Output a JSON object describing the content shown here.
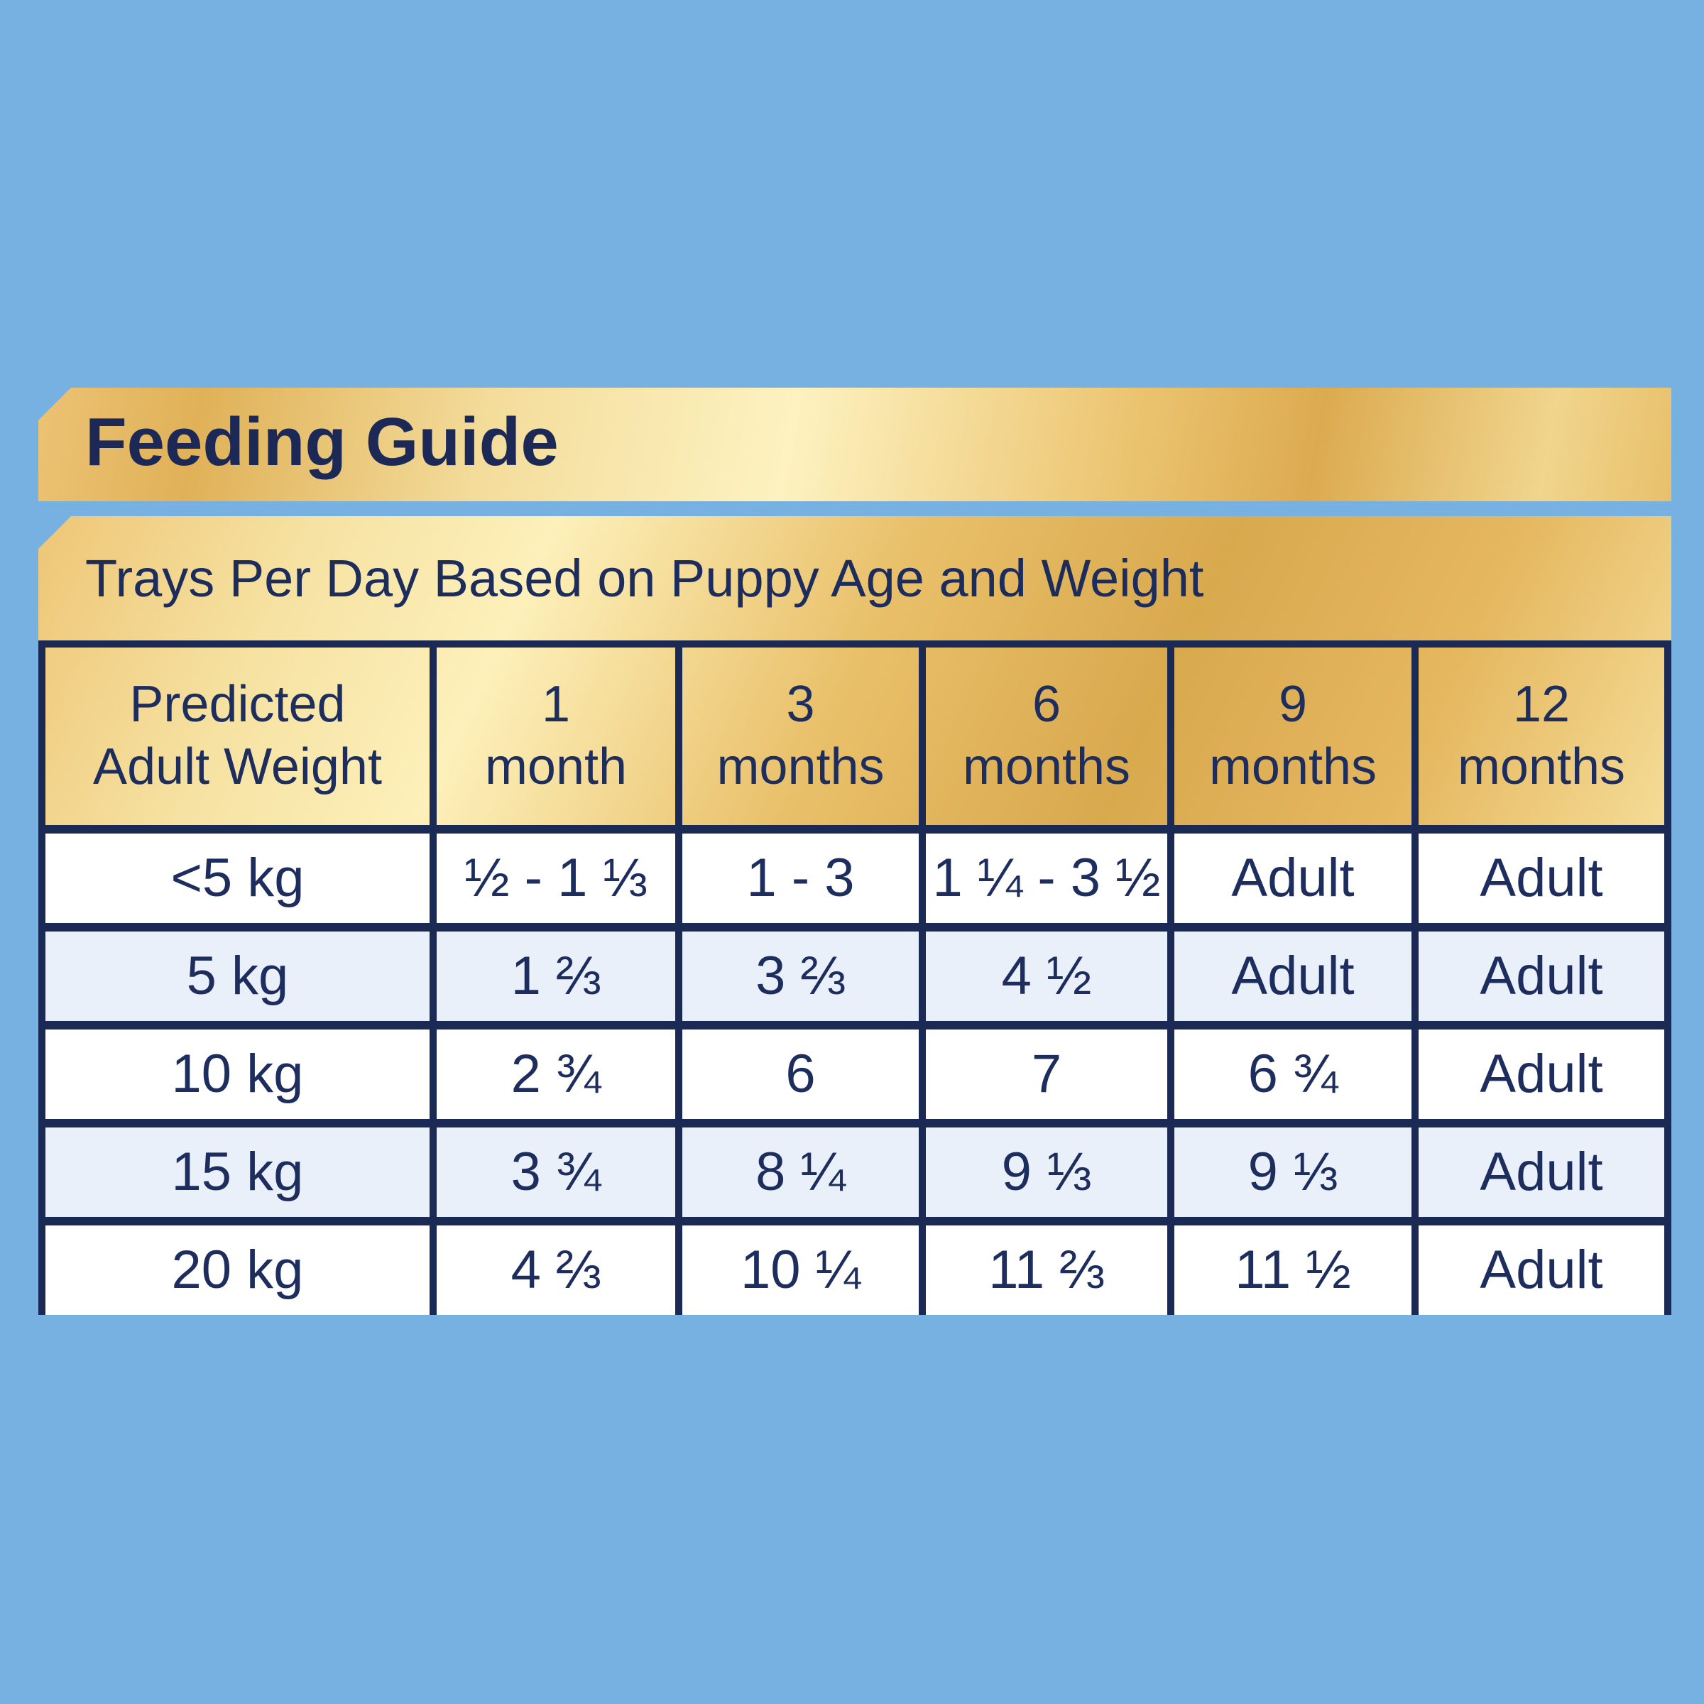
{
  "banner": {
    "title": "Feeding Guide"
  },
  "chart_data": {
    "type": "table",
    "title": "Feeding Guide",
    "subtitle": "Trays Per Day Based on Puppy Age and Weight",
    "unit": "trays per day",
    "columns": [
      {
        "label": "Predicted Adult Weight",
        "lines": [
          "Predicted",
          "Adult Weight"
        ]
      },
      {
        "label": "1 month",
        "lines": [
          "1",
          "month"
        ]
      },
      {
        "label": "3 months",
        "lines": [
          "3",
          "months"
        ]
      },
      {
        "label": "6 months",
        "lines": [
          "6",
          "months"
        ]
      },
      {
        "label": "9 months",
        "lines": [
          "9",
          "months"
        ]
      },
      {
        "label": "12 months",
        "lines": [
          "12",
          "months"
        ]
      }
    ],
    "rows": [
      {
        "weight": "<5 kg",
        "values": [
          "½ - 1 ⅓",
          "1 - 3",
          "1 ¼ - 3 ½",
          "Adult",
          "Adult"
        ]
      },
      {
        "weight": "5 kg",
        "values": [
          "1 ⅔",
          "3 ⅔",
          "4 ½",
          "Adult",
          "Adult"
        ]
      },
      {
        "weight": "10 kg",
        "values": [
          "2 ¾",
          "6",
          "7",
          "6 ¾",
          "Adult"
        ]
      },
      {
        "weight": "15 kg",
        "values": [
          "3 ¾",
          "8 ¼",
          "9 ⅓",
          "9 ⅓",
          "Adult"
        ]
      },
      {
        "weight": "20 kg",
        "values": [
          "4 ⅔",
          "10 ¼",
          "11 ⅔",
          "11 ½",
          "Adult"
        ]
      }
    ],
    "layout_hints": {
      "header_background": "gold-gradient",
      "row_striping": [
        "white",
        "light-blue",
        "white",
        "light-blue",
        "white"
      ],
      "grid": true
    },
    "colors": {
      "page_background": "#77b1e2",
      "navy_text": "#1d2d5e",
      "navy_border": "#1b2a55",
      "gold_light": "#fdf2c0",
      "gold_mid": "#eac468",
      "gold_dark": "#d9a94e",
      "row_alt_blue": "#e9f0fa",
      "row_white": "#ffffff"
    }
  }
}
